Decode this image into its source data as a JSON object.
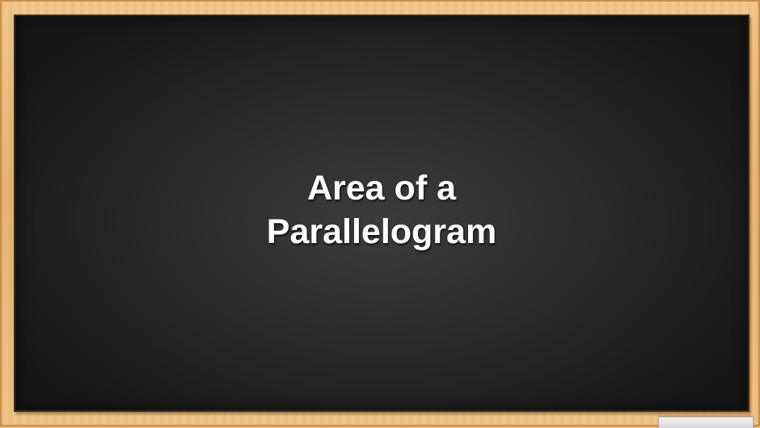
{
  "slide": {
    "title_line1": "Area of a",
    "title_line2": "Parallelogram"
  },
  "colors": {
    "board": "#2c2c2c",
    "frame": "#e9b777",
    "text": "#ffffff"
  }
}
